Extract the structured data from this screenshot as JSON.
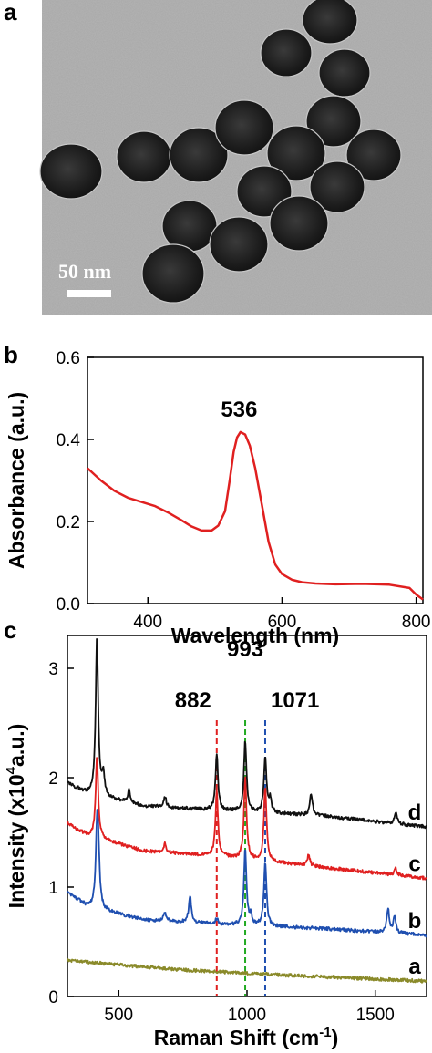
{
  "panel_labels": {
    "a": "a",
    "b": "b",
    "c": "c"
  },
  "scale_bar": {
    "label": "50 nm"
  },
  "colors": {
    "uv": "#e02020",
    "a": "#8a8a2a",
    "b": "#1f4fb0",
    "c": "#e02020",
    "d": "#111111",
    "line882": "#e02020",
    "line993": "#22aa22",
    "line1071": "#1f4fb0",
    "tem_bg": "#a7a7a7",
    "particle": "#1a1a1a"
  },
  "chart_data": [
    {
      "type": "line",
      "panel": "b",
      "xlabel": "Wavelength (nm)",
      "ylabel": "Absorbance (a.u.)",
      "xlim": [
        310,
        810
      ],
      "ylim": [
        0.0,
        0.6
      ],
      "xticks": [
        400,
        600,
        800
      ],
      "xtick_labels": [
        "400",
        "600",
        "800"
      ],
      "yticks": [
        0.0,
        0.2,
        0.4,
        0.6
      ],
      "ytick_labels": [
        "0.0",
        "0.2",
        "0.4",
        "0.6"
      ],
      "annotations": [
        {
          "text": "536",
          "x": 536,
          "y": 0.42
        }
      ],
      "series": [
        {
          "color": "#e02020",
          "points": [
            [
              310,
              0.33
            ],
            [
              330,
              0.3
            ],
            [
              350,
              0.275
            ],
            [
              370,
              0.258
            ],
            [
              390,
              0.248
            ],
            [
              410,
              0.238
            ],
            [
              430,
              0.222
            ],
            [
              450,
              0.203
            ],
            [
              465,
              0.188
            ],
            [
              480,
              0.178
            ],
            [
              495,
              0.178
            ],
            [
              505,
              0.19
            ],
            [
              515,
              0.225
            ],
            [
              522,
              0.3
            ],
            [
              528,
              0.37
            ],
            [
              533,
              0.405
            ],
            [
              538,
              0.418
            ],
            [
              545,
              0.412
            ],
            [
              552,
              0.385
            ],
            [
              560,
              0.33
            ],
            [
              570,
              0.24
            ],
            [
              580,
              0.15
            ],
            [
              590,
              0.095
            ],
            [
              600,
              0.072
            ],
            [
              615,
              0.058
            ],
            [
              630,
              0.052
            ],
            [
              650,
              0.049
            ],
            [
              680,
              0.047
            ],
            [
              720,
              0.048
            ],
            [
              760,
              0.046
            ],
            [
              790,
              0.038
            ],
            [
              800,
              0.022
            ],
            [
              810,
              0.01
            ]
          ]
        }
      ]
    },
    {
      "type": "line",
      "panel": "c",
      "xlabel": "Raman Shift (cm-1)",
      "ylabel": "Intensity (x10⁴a.u.)",
      "xlim": [
        300,
        1700
      ],
      "ylim": [
        0,
        3.3
      ],
      "xticks": [
        500,
        1000,
        1500
      ],
      "xtick_labels": [
        "500",
        "1000",
        "1500"
      ],
      "yticks": [
        0,
        1,
        2,
        3
      ],
      "ytick_labels": [
        "0",
        "1",
        "2",
        "3"
      ],
      "vlines": [
        {
          "x": 882,
          "label": "882"
        },
        {
          "x": 993,
          "label": "993"
        },
        {
          "x": 1071,
          "label": "1071"
        }
      ],
      "series": [
        {
          "name": "a",
          "color": "#8a8a2a",
          "baseline": [
            [
              300,
              0.33
            ],
            [
              700,
              0.25
            ],
            [
              1100,
              0.2
            ],
            [
              1700,
              0.14
            ]
          ],
          "peaks": []
        },
        {
          "name": "b",
          "color": "#1f4fb0",
          "baseline": [
            [
              300,
              0.95
            ],
            [
              380,
              0.82
            ],
            [
              600,
              0.7
            ],
            [
              900,
              0.66
            ],
            [
              1300,
              0.62
            ],
            [
              1700,
              0.56
            ]
          ],
          "peaks": [
            [
              415,
              0.6
            ],
            [
              420,
              0.45
            ],
            [
              680,
              0.08
            ],
            [
              778,
              0.25
            ],
            [
              882,
              0.05
            ],
            [
              993,
              0.68
            ],
            [
              1015,
              0.08
            ],
            [
              1071,
              0.58
            ],
            [
              1550,
              0.22
            ],
            [
              1575,
              0.15
            ]
          ]
        },
        {
          "name": "c",
          "color": "#e02020",
          "baseline": [
            [
              300,
              1.58
            ],
            [
              380,
              1.47
            ],
            [
              600,
              1.33
            ],
            [
              900,
              1.28
            ],
            [
              1300,
              1.18
            ],
            [
              1700,
              1.08
            ]
          ],
          "peaks": [
            [
              415,
              0.75
            ],
            [
              680,
              0.08
            ],
            [
              882,
              0.58
            ],
            [
              993,
              0.75
            ],
            [
              1071,
              0.68
            ],
            [
              1240,
              0.1
            ],
            [
              1580,
              0.06
            ]
          ]
        },
        {
          "name": "d",
          "color": "#111111",
          "baseline": [
            [
              300,
              1.95
            ],
            [
              380,
              1.85
            ],
            [
              600,
              1.74
            ],
            [
              900,
              1.7
            ],
            [
              1300,
              1.65
            ],
            [
              1700,
              1.55
            ]
          ],
          "peaks": [
            [
              415,
              1.45
            ],
            [
              440,
              0.2
            ],
            [
              540,
              0.12
            ],
            [
              680,
              0.1
            ],
            [
              882,
              0.5
            ],
            [
              993,
              0.65
            ],
            [
              1071,
              0.5
            ],
            [
              1090,
              0.12
            ],
            [
              1250,
              0.2
            ],
            [
              1580,
              0.1
            ]
          ]
        }
      ]
    }
  ]
}
